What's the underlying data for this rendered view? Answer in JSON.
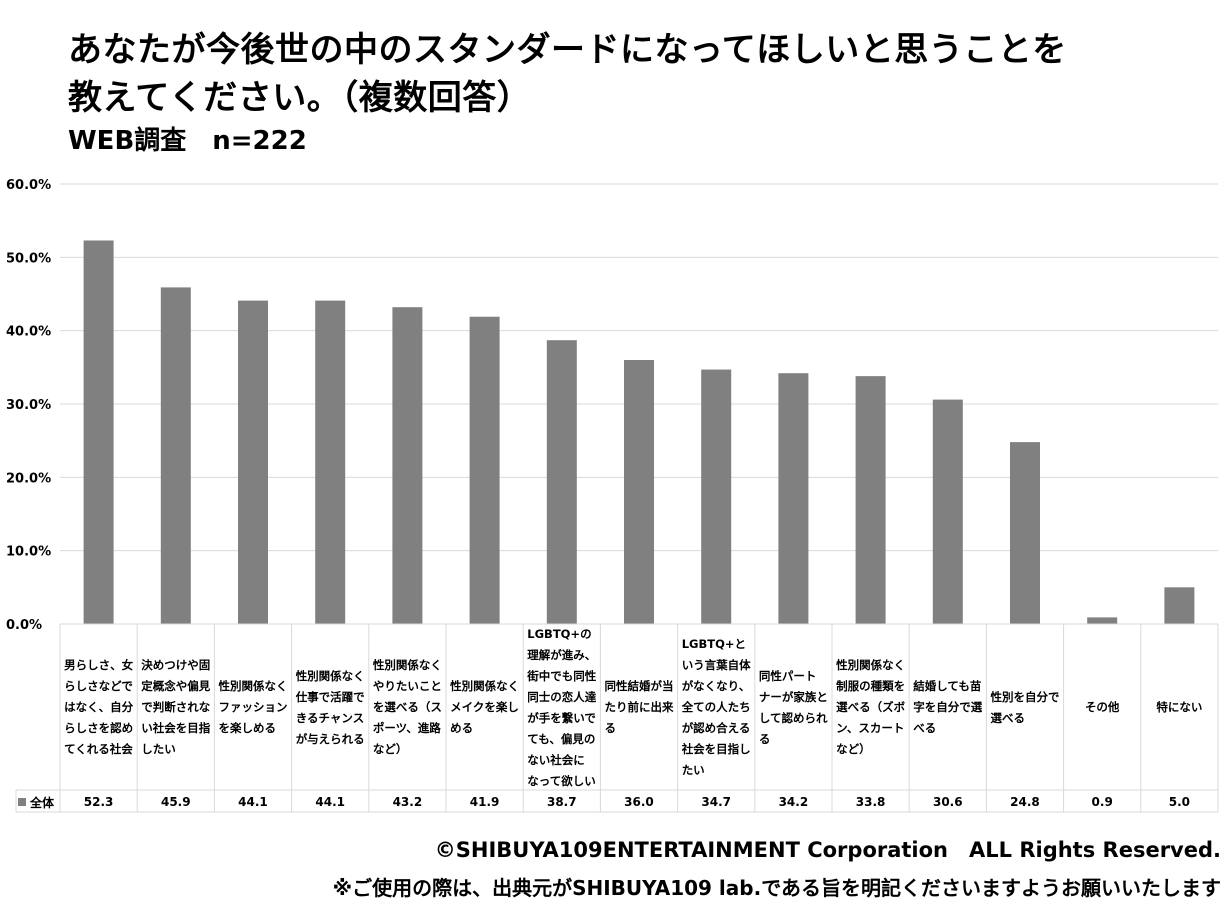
{
  "title_line1": "あなたが今後世の中のスタンダードになってほしいと思うことを",
  "title_line2": "教えてください。（複数回答）",
  "subtitle": "WEB調査　n=222",
  "colors": {
    "bar": "#808080",
    "grid": "#d9d9d9",
    "table_border": "#d9d9d9"
  },
  "chart_data": {
    "type": "bar",
    "ylim": [
      0,
      60
    ],
    "yticks": [
      "0.0%",
      "10.0%",
      "20.0%",
      "30.0%",
      "40.0%",
      "50.0%",
      "60.0%"
    ],
    "grid": true,
    "legend": "data-table",
    "categories": [
      "男らしさ、女らしさなどではなく、自分らしさを認めてくれる社会",
      "決めつけや固定概念や偏見で判断されない社会を目指したい",
      "性別関係なくファッションを楽しめる",
      "性別関係なく仕事で活躍できるチャンスが与えられる",
      "性別関係なくやりたいことを選べる（スポーツ、進路など）",
      "性別関係なくメイクを楽しめる",
      "LGBTQ+の理解が進み、街中でも同性同士の恋人達が手を繋いでても、偏見のない社会になって欲しい",
      "同性結婚が当たり前に出来る",
      "LGBTQ+という言葉自体がなくなり、全ての人たちが認め合える社会を目指したい",
      "同性パートナーが家族として認められる",
      "性別関係なく制服の種類を選べる（ズボン、スカートなど）",
      "結婚しても苗字を自分で選べる",
      "性別を自分で選べる",
      "その他",
      "特にない"
    ],
    "category_lines": [
      [
        "男らしさ、女",
        "らしさなどで",
        "はなく、自分",
        "らしさを認め",
        "てくれる社会"
      ],
      [
        "決めつけや固",
        "定概念や偏見",
        "で判断されな",
        "い社会を目指",
        "したい"
      ],
      [
        "性別関係なく",
        "ファッション",
        "を楽しめる"
      ],
      [
        "性別関係なく",
        "仕事で活躍で",
        "きるチャンス",
        "が与えられる"
      ],
      [
        "性別関係なく",
        "やりたいこと",
        "を選べる（ス",
        "ポーツ、進路",
        "など）"
      ],
      [
        "性別関係なく",
        "メイクを楽し",
        "める"
      ],
      [
        "LGBTQ+の",
        "理解が進み、",
        "街中でも同性",
        "同士の恋人達",
        "が手を繋いで",
        "ても、偏見の",
        "ない社会に",
        "なって欲しい"
      ],
      [
        "同性結婚が当",
        "たり前に出来",
        "る"
      ],
      [
        "LGBTQ+と",
        "いう言葉自体",
        "がなくなり、",
        "全ての人たち",
        "が認め合える",
        "社会を目指し",
        "たい"
      ],
      [
        "同性パート",
        "ナーが家族と",
        "して認められ",
        "る"
      ],
      [
        "性別関係なく",
        "制服の種類を",
        "選べる（ズボ",
        "ン、スカート",
        "など）"
      ],
      [
        "結婚しても苗",
        "字を自分で選",
        "べる"
      ],
      [
        "性別を自分で",
        "選べる"
      ],
      [
        "その他"
      ],
      [
        "特にない"
      ]
    ],
    "series": [
      {
        "name": "全体",
        "values": [
          52.3,
          45.9,
          44.1,
          44.1,
          43.2,
          41.9,
          38.7,
          36.0,
          34.7,
          34.2,
          33.8,
          30.6,
          24.8,
          0.9,
          5.0
        ],
        "labels": [
          "52.3",
          "45.9",
          "44.1",
          "44.1",
          "43.2",
          "41.9",
          "38.7",
          "36.0",
          "34.7",
          "34.2",
          "33.8",
          "30.6",
          "24.8",
          "0.9",
          "5.0"
        ]
      }
    ]
  },
  "footer": {
    "copyright": "©SHIBUYA109ENTERTAINMENT Corporation　ALL Rights Reserved.",
    "notice": "※ご使用の際は、出典元がSHIBUYA109 lab.である旨を明記くださいますようお願いいたします"
  }
}
